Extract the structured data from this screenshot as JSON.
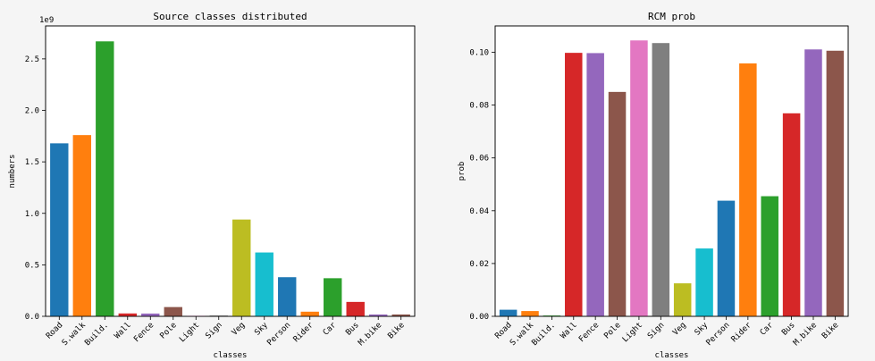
{
  "chart_data": [
    {
      "type": "bar",
      "title": "Source classes distributed",
      "xlabel": "classes",
      "ylabel": "numbers",
      "offset_text": "1e9",
      "categories": [
        "Road",
        "S.walk",
        "Build.",
        "Wall",
        "Fence",
        "Pole",
        "Light",
        "Sign",
        "Veg",
        "Sky",
        "Person",
        "Rider",
        "Car",
        "Bus",
        "M.bike",
        "Bike"
      ],
      "values": [
        1.68,
        1.76,
        2.67,
        0.028,
        0.027,
        0.09,
        0.005,
        0.008,
        0.94,
        0.62,
        0.38,
        0.045,
        0.37,
        0.14,
        0.018,
        0.018
      ],
      "ylim": [
        0,
        2.82
      ],
      "yticks": [
        0.0,
        0.5,
        1.0,
        1.5,
        2.0,
        2.5
      ],
      "ytick_labels": [
        "0.0",
        "0.5",
        "1.0",
        "1.5",
        "2.0",
        "2.5"
      ],
      "colors": [
        "#1f77b4",
        "#ff7f0e",
        "#2ca02c",
        "#d62728",
        "#9467bd",
        "#8c564b",
        "#e377c2",
        "#7f7f7f",
        "#bcbd22",
        "#17becf",
        "#1f77b4",
        "#ff7f0e",
        "#2ca02c",
        "#d62728",
        "#9467bd",
        "#8c564b"
      ],
      "grid": false,
      "legend": "none"
    },
    {
      "type": "bar",
      "title": "RCM prob",
      "xlabel": "classes",
      "ylabel": "prob",
      "categories": [
        "Road",
        "S.walk",
        "Build.",
        "Wall",
        "Fence",
        "Pole",
        "Light",
        "Sign",
        "Veg",
        "Sky",
        "Person",
        "Rider",
        "Car",
        "Bus",
        "M.bike",
        "Bike"
      ],
      "values": [
        0.0025,
        0.002,
        0.0003,
        0.0998,
        0.0997,
        0.085,
        0.1045,
        0.1035,
        0.0125,
        0.0257,
        0.0438,
        0.0958,
        0.0455,
        0.0769,
        0.1011,
        0.1006
      ],
      "ylim": [
        0,
        0.11
      ],
      "yticks": [
        0.0,
        0.02,
        0.04,
        0.06,
        0.08,
        0.1
      ],
      "ytick_labels": [
        "0.00",
        "0.02",
        "0.04",
        "0.06",
        "0.08",
        "0.10"
      ],
      "colors": [
        "#1f77b4",
        "#ff7f0e",
        "#2ca02c",
        "#d62728",
        "#9467bd",
        "#8c564b",
        "#e377c2",
        "#7f7f7f",
        "#bcbd22",
        "#17becf",
        "#1f77b4",
        "#ff7f0e",
        "#2ca02c",
        "#d62728",
        "#9467bd",
        "#8c564b"
      ],
      "grid": false,
      "legend": "none"
    }
  ]
}
